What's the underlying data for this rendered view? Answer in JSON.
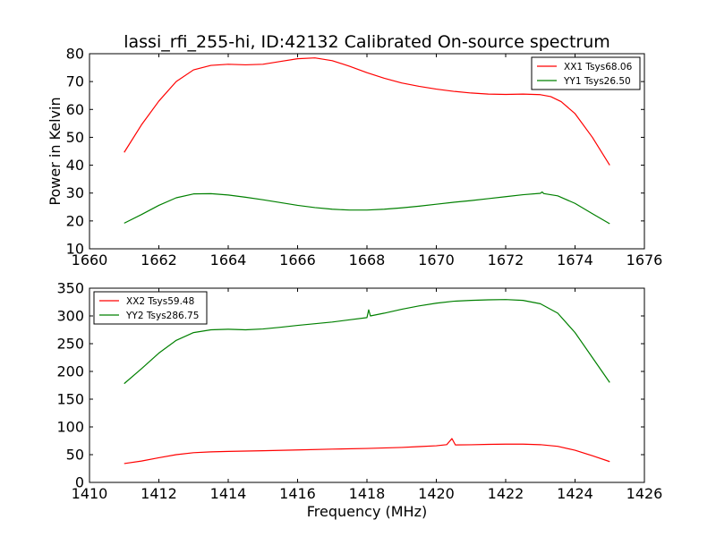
{
  "chart_data": [
    {
      "type": "line",
      "title": "lassi_rfi_255-hi, ID:42132 Calibrated On-source spectrum",
      "xlabel": "",
      "ylabel": "Power in Kelvin",
      "xlim": [
        1660,
        1676
      ],
      "ylim": [
        10,
        80
      ],
      "xticks": [
        1660,
        1662,
        1664,
        1666,
        1668,
        1670,
        1672,
        1674,
        1676
      ],
      "yticks": [
        10,
        20,
        30,
        40,
        50,
        60,
        70,
        80
      ],
      "legend_position": "upper right",
      "grid": false,
      "series": [
        {
          "name": "XX1 Tsys68.06",
          "color": "#ff0000",
          "points": [
            [
              1661.0,
              44.6
            ],
            [
              1661.5,
              54.5
            ],
            [
              1662.0,
              63.0
            ],
            [
              1662.5,
              70.0
            ],
            [
              1663.0,
              74.2
            ],
            [
              1663.5,
              75.8
            ],
            [
              1664.0,
              76.2
            ],
            [
              1664.5,
              76.0
            ],
            [
              1665.0,
              76.2
            ],
            [
              1665.5,
              77.2
            ],
            [
              1666.0,
              78.2
            ],
            [
              1666.5,
              78.5
            ],
            [
              1667.0,
              77.5
            ],
            [
              1667.5,
              75.5
            ],
            [
              1668.0,
              73.2
            ],
            [
              1668.5,
              71.2
            ],
            [
              1669.0,
              69.5
            ],
            [
              1669.5,
              68.3
            ],
            [
              1670.0,
              67.3
            ],
            [
              1670.5,
              66.5
            ],
            [
              1671.0,
              65.9
            ],
            [
              1671.5,
              65.5
            ],
            [
              1672.0,
              65.4
            ],
            [
              1672.5,
              65.5
            ],
            [
              1673.0,
              65.3
            ],
            [
              1673.3,
              64.6
            ],
            [
              1673.6,
              62.8
            ],
            [
              1674.0,
              58.5
            ],
            [
              1674.5,
              50.0
            ],
            [
              1675.0,
              40.0
            ]
          ]
        },
        {
          "name": "YY1 Tsys26.50",
          "color": "#008000",
          "points": [
            [
              1661.0,
              19.2
            ],
            [
              1661.5,
              22.3
            ],
            [
              1662.0,
              25.6
            ],
            [
              1662.5,
              28.3
            ],
            [
              1663.0,
              29.7
            ],
            [
              1663.5,
              29.8
            ],
            [
              1664.0,
              29.3
            ],
            [
              1664.5,
              28.5
            ],
            [
              1665.0,
              27.6
            ],
            [
              1665.5,
              26.6
            ],
            [
              1666.0,
              25.6
            ],
            [
              1666.5,
              24.8
            ],
            [
              1667.0,
              24.2
            ],
            [
              1667.5,
              23.9
            ],
            [
              1668.0,
              23.9
            ],
            [
              1668.5,
              24.2
            ],
            [
              1669.0,
              24.7
            ],
            [
              1669.5,
              25.3
            ],
            [
              1670.0,
              26.0
            ],
            [
              1670.5,
              26.7
            ],
            [
              1671.0,
              27.3
            ],
            [
              1671.5,
              28.0
            ],
            [
              1672.0,
              28.7
            ],
            [
              1672.5,
              29.4
            ],
            [
              1673.0,
              29.9
            ],
            [
              1673.05,
              30.4
            ],
            [
              1673.1,
              29.8
            ],
            [
              1673.5,
              29.0
            ],
            [
              1674.0,
              26.3
            ],
            [
              1674.5,
              22.6
            ],
            [
              1675.0,
              19.0
            ]
          ]
        }
      ]
    },
    {
      "type": "line",
      "title": "",
      "xlabel": "Frequency (MHz)",
      "ylabel": "",
      "xlim": [
        1410,
        1426
      ],
      "ylim": [
        0,
        350
      ],
      "xticks": [
        1410,
        1412,
        1414,
        1416,
        1418,
        1420,
        1422,
        1424,
        1426
      ],
      "yticks": [
        0,
        50,
        100,
        150,
        200,
        250,
        300,
        350
      ],
      "legend_position": "upper left",
      "grid": false,
      "series": [
        {
          "name": "XX2 Tsys59.48",
          "color": "#ff0000",
          "points": [
            [
              1411.0,
              34.0
            ],
            [
              1411.5,
              38.5
            ],
            [
              1412.0,
              44.5
            ],
            [
              1412.5,
              50.0
            ],
            [
              1413.0,
              53.5
            ],
            [
              1413.5,
              55.0
            ],
            [
              1414.0,
              55.8
            ],
            [
              1415.0,
              57.0
            ],
            [
              1416.0,
              58.5
            ],
            [
              1417.0,
              60.0
            ],
            [
              1418.0,
              61.2
            ],
            [
              1419.0,
              63.0
            ],
            [
              1419.5,
              64.5
            ],
            [
              1420.0,
              66.0
            ],
            [
              1420.3,
              68.0
            ],
            [
              1420.45,
              79.0
            ],
            [
              1420.55,
              67.5
            ],
            [
              1421.0,
              67.8
            ],
            [
              1421.5,
              68.5
            ],
            [
              1422.0,
              69.0
            ],
            [
              1422.5,
              69.0
            ],
            [
              1423.0,
              68.0
            ],
            [
              1423.5,
              65.0
            ],
            [
              1424.0,
              58.0
            ],
            [
              1424.5,
              48.0
            ],
            [
              1425.0,
              37.5
            ]
          ]
        },
        {
          "name": "YY2 Tsys286.75",
          "color": "#008000",
          "points": [
            [
              1411.0,
              178.0
            ],
            [
              1411.5,
              205.0
            ],
            [
              1412.0,
              233.0
            ],
            [
              1412.5,
              256.0
            ],
            [
              1413.0,
              270.0
            ],
            [
              1413.5,
              275.0
            ],
            [
              1414.0,
              276.0
            ],
            [
              1414.5,
              275.0
            ],
            [
              1415.0,
              276.5
            ],
            [
              1415.5,
              279.5
            ],
            [
              1416.0,
              283.0
            ],
            [
              1416.5,
              286.0
            ],
            [
              1417.0,
              289.0
            ],
            [
              1417.5,
              293.0
            ],
            [
              1418.0,
              297.0
            ],
            [
              1418.05,
              311.0
            ],
            [
              1418.1,
              300.0
            ],
            [
              1418.5,
              305.0
            ],
            [
              1419.0,
              312.0
            ],
            [
              1419.5,
              318.0
            ],
            [
              1420.0,
              323.0
            ],
            [
              1420.5,
              326.5
            ],
            [
              1421.0,
              328.0
            ],
            [
              1421.5,
              329.0
            ],
            [
              1422.0,
              329.5
            ],
            [
              1422.5,
              328.0
            ],
            [
              1423.0,
              322.0
            ],
            [
              1423.5,
              305.0
            ],
            [
              1424.0,
              270.0
            ],
            [
              1424.5,
              225.0
            ],
            [
              1425.0,
              180.0
            ]
          ]
        }
      ]
    }
  ]
}
